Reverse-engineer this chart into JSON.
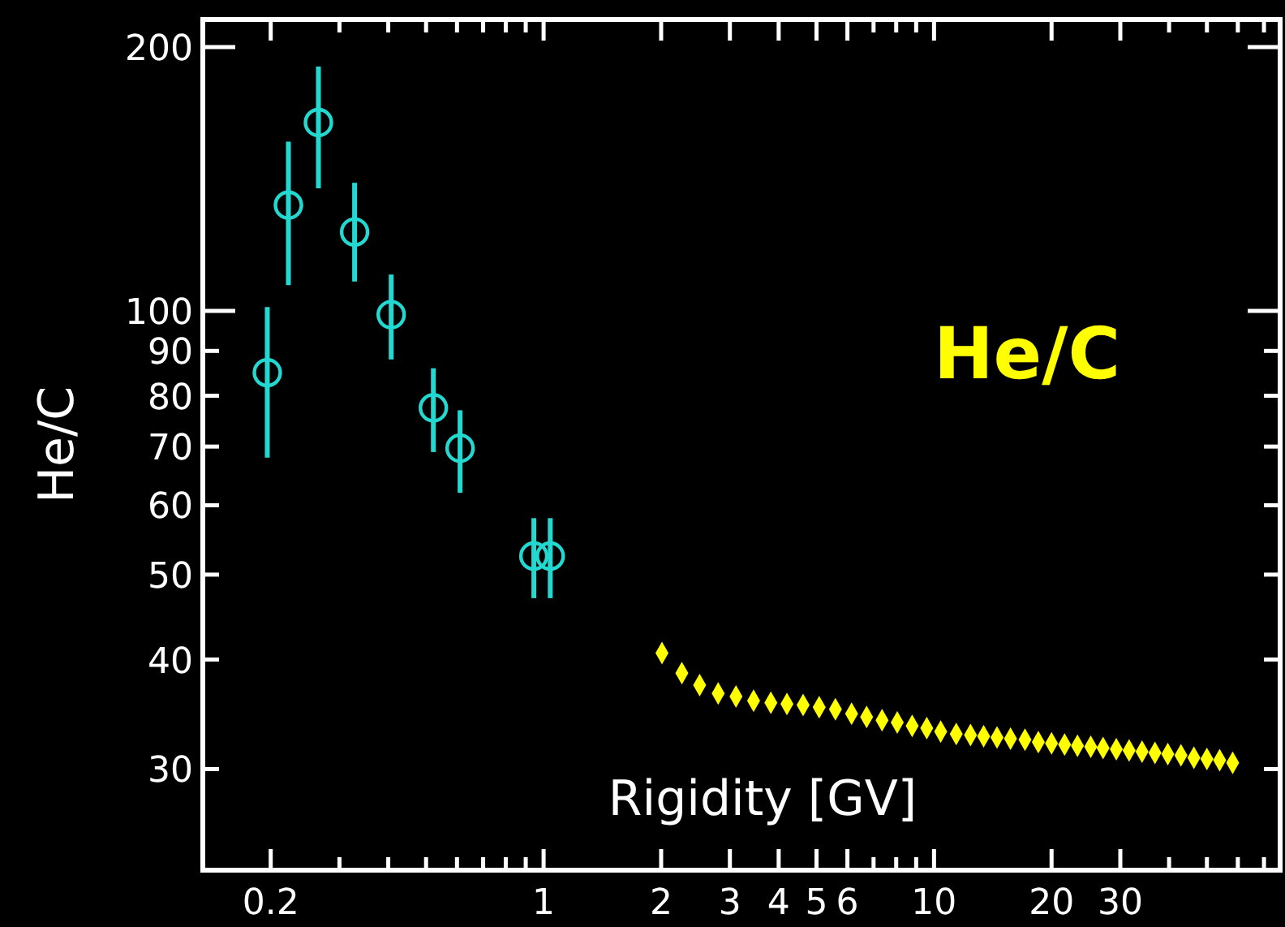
{
  "chart_data": {
    "type": "scatter",
    "xlabel": "Rigidity [GV]",
    "ylabel": "He/C",
    "log": "xy",
    "grid": false,
    "annotations": [
      "He/C"
    ],
    "xlim": [
      0.134,
      77
    ],
    "ylim": [
      23,
      215
    ],
    "xticks": [
      0.2,
      {
        "value": 0.3,
        "label": null
      },
      {
        "value": 0.4,
        "label": null
      },
      {
        "value": 0.5,
        "label": null
      },
      {
        "value": 0.6,
        "label": null
      },
      {
        "value": 0.7,
        "label": null
      },
      {
        "value": 0.8,
        "label": null
      },
      {
        "value": 0.9,
        "label": null
      },
      1,
      2,
      3,
      4,
      5,
      6,
      {
        "value": 7,
        "label": null
      },
      {
        "value": 8,
        "label": null
      },
      {
        "value": 9,
        "label": null
      },
      10,
      20,
      30,
      {
        "value": 40,
        "label": null
      },
      {
        "value": 50,
        "label": null
      },
      {
        "value": 60,
        "label": null
      },
      {
        "value": 70,
        "label": null
      }
    ],
    "yticks": [
      30,
      40,
      50,
      60,
      70,
      80,
      90,
      100,
      200
    ],
    "series": [
      {
        "color": "#22d8d0",
        "marker": "circle",
        "x": [
          0.196,
          0.222,
          0.265,
          0.328,
          0.407,
          0.522,
          0.611,
          0.944,
          1.04
        ],
        "values": [
          85,
          132,
          164,
          123,
          99,
          77.5,
          69.7,
          52.5,
          52.5
        ],
        "errors": [
          [
            68,
            101
          ],
          [
            107,
            156
          ],
          [
            138,
            190
          ],
          [
            108,
            140
          ],
          [
            88,
            110
          ],
          [
            69,
            86
          ],
          [
            62,
            77
          ],
          [
            47,
            58
          ],
          [
            47,
            58
          ]
        ]
      },
      {
        "color": "#ffff00",
        "marker": "diamond",
        "x": [
          2.01,
          2.26,
          2.51,
          2.8,
          3.11,
          3.45,
          3.82,
          4.2,
          4.62,
          5.08,
          5.59,
          6.15,
          6.72,
          7.36,
          8.05,
          8.79,
          9.58,
          10.4,
          11.4,
          12.4,
          13.4,
          14.5,
          15.7,
          17.1,
          18.5,
          20,
          21.6,
          23.3,
          25.2,
          27.1,
          29.3,
          31.6,
          34.1,
          36.8,
          39.7,
          42.9,
          46.3,
          50,
          53.9,
          58.2
        ],
        "values": [
          40.7,
          38.6,
          37.4,
          36.6,
          36.3,
          35.9,
          35.7,
          35.6,
          35.5,
          35.3,
          35.1,
          34.7,
          34.4,
          34.1,
          33.9,
          33.6,
          33.4,
          33.1,
          32.9,
          32.8,
          32.7,
          32.6,
          32.5,
          32.4,
          32.2,
          32.1,
          32,
          31.9,
          31.8,
          31.7,
          31.6,
          31.5,
          31.4,
          31.3,
          31.2,
          31.1,
          30.9,
          30.8,
          30.7,
          30.5
        ]
      }
    ]
  }
}
